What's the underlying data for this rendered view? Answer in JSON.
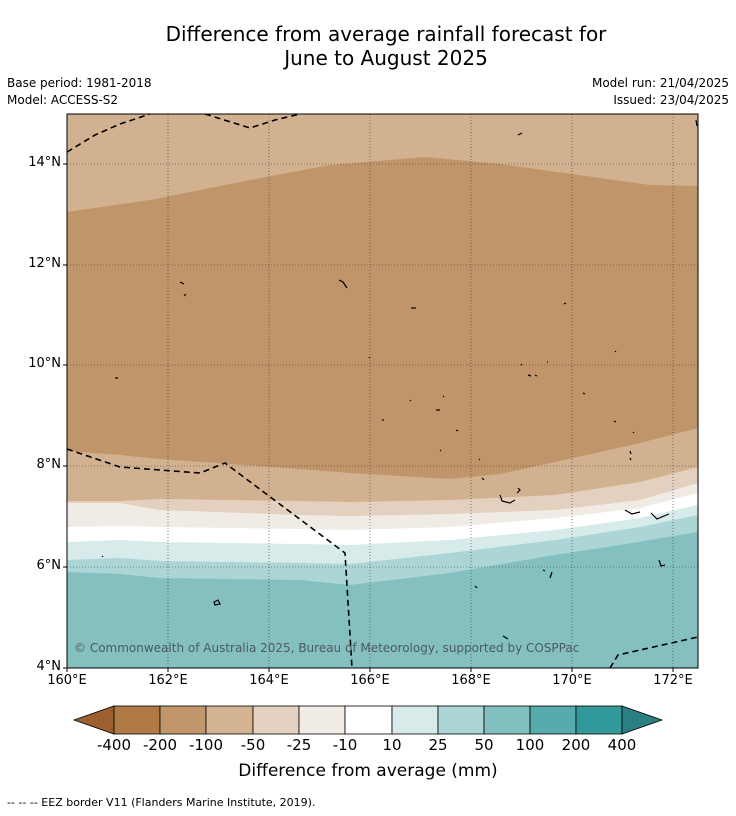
{
  "title_line1": "Difference from average rainfall forecast for",
  "title_line2": "June to August 2025",
  "base_period": "Base period: 1981-2018",
  "model": "Model: ACCESS-S2",
  "model_run": "Model run: 21/04/2025",
  "issued": "Issued: 23/04/2025",
  "latitude_labels": [
    "14°N",
    "12°N",
    "10°N",
    "8°N",
    "6°N",
    "4°N"
  ],
  "longitude_labels": [
    "160°E",
    "162°E",
    "164°E",
    "166°E",
    "168°E",
    "170°E",
    "172°E"
  ],
  "copyright": "© Commonwealth of Australia 2025, Bureau of Meteorology, supported by COSPPac",
  "colorbar": {
    "labels": [
      "-400",
      "-200",
      "-100",
      "-50",
      "-25",
      "-10",
      "10",
      "25",
      "50",
      "100",
      "200",
      "400"
    ],
    "colors": [
      "#9b622f",
      "#b07a45",
      "#c1966b",
      "#d4b393",
      "#e5d1c0",
      "#f2ece6",
      "#ffffff",
      "#d6ebea",
      "#abd5d5",
      "#82bfbf",
      "#57abad",
      "#32999a",
      "#2a7f80"
    ],
    "title": "Difference from average (mm)"
  },
  "map_colors": {
    "minus_50_100": "#d2b190",
    "minus_100_200": "#c0956a",
    "minus_25_50": "#e4d0be",
    "minus_10_25": "#f1ebe5",
    "neutral": "#ffffff",
    "plus_10_25": "#d6ebea",
    "plus_25_50": "#acd5d6",
    "plus_50_100": "#85c0c0"
  },
  "footnote": "--  --  -- EEZ border V11 (Flanders Marine Institute, 2019)."
}
